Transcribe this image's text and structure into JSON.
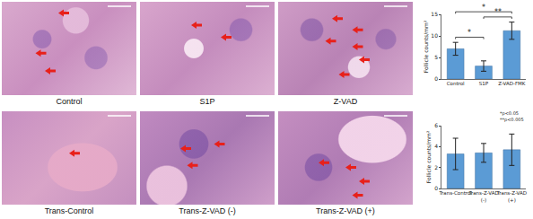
{
  "panels": [
    {
      "label": "Control"
    },
    {
      "label": "S1P"
    },
    {
      "label": "Z-VAD"
    },
    {
      "label": "Trans-Control"
    },
    {
      "label": "Trans-Z-VAD (-)"
    },
    {
      "label": "Trans-Z-VAD (+)"
    }
  ],
  "chart_data": [
    {
      "type": "bar",
      "categories": [
        "Control",
        "S1P",
        "Z-VAD-FMK"
      ],
      "values": [
        7,
        3,
        11.2
      ],
      "errors": [
        1.5,
        1.2,
        2
      ],
      "color": "#5b9bd5",
      "y_label": "Follicle counts/mm²",
      "ylim": [
        0,
        15
      ],
      "yticks": [
        0,
        5,
        10,
        15
      ],
      "grid": false,
      "annotations": [
        {
          "from": "Control",
          "to": "S1P",
          "text": "*"
        },
        {
          "from": "S1P",
          "to": "Z-VAD-FMK",
          "text": "**"
        },
        {
          "from": "Control",
          "to": "Z-VAD-FMK",
          "text": "*"
        }
      ]
    },
    {
      "type": "bar",
      "categories": [
        "Trans-Control",
        "Trans-Z-VAD (-)",
        "Trans-Z-VAD (+)"
      ],
      "values": [
        3.3,
        3.4,
        3.7
      ],
      "errors": [
        1.5,
        0.9,
        1.5
      ],
      "color": "#5b9bd5",
      "y_label": "Follicle counts/mm²",
      "ylim": [
        0,
        6
      ],
      "yticks": [
        0,
        2,
        4,
        6
      ],
      "grid": false
    }
  ],
  "note": [
    "*p<0.05",
    "**p<0.005"
  ]
}
